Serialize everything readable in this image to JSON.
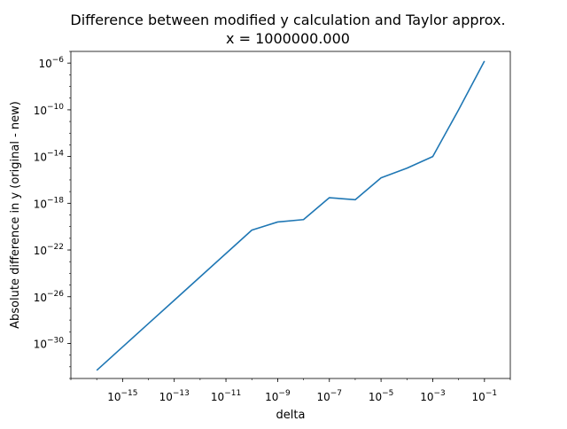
{
  "chart_data": {
    "type": "line",
    "title_line1": "Difference between modified y calculation and Taylor approx.",
    "title_line2": "x = 1000000.000",
    "xlabel": "delta",
    "ylabel": "Absolute difference in y (original - new)",
    "x_scale": "log",
    "y_scale": "log",
    "xlim": [
      1e-17,
      1.0
    ],
    "ylim": [
      1e-33,
      1e-05
    ],
    "grid": false,
    "x_ticks": [
      {
        "base": "10",
        "exp": "−15",
        "value": 1e-15
      },
      {
        "base": "10",
        "exp": "−13",
        "value": 1e-13
      },
      {
        "base": "10",
        "exp": "−11",
        "value": 1e-11
      },
      {
        "base": "10",
        "exp": "−9",
        "value": 1e-09
      },
      {
        "base": "10",
        "exp": "−7",
        "value": 1e-07
      },
      {
        "base": "10",
        "exp": "−5",
        "value": 1e-05
      },
      {
        "base": "10",
        "exp": "−3",
        "value": 0.001
      },
      {
        "base": "10",
        "exp": "−1",
        "value": 0.1
      }
    ],
    "y_ticks": [
      {
        "base": "10",
        "exp": "−30",
        "value": 1e-30
      },
      {
        "base": "10",
        "exp": "−26",
        "value": 1e-26
      },
      {
        "base": "10",
        "exp": "−22",
        "value": 1e-22
      },
      {
        "base": "10",
        "exp": "−18",
        "value": 1e-18
      },
      {
        "base": "10",
        "exp": "−14",
        "value": 1e-14
      },
      {
        "base": "10",
        "exp": "−10",
        "value": 1e-10
      },
      {
        "base": "10",
        "exp": "−6",
        "value": 1e-06
      }
    ],
    "series": [
      {
        "color": "#1f77b4",
        "x": [
          1e-16,
          1e-15,
          1e-14,
          1e-13,
          1e-12,
          1e-11,
          1e-10,
          1e-09,
          1e-08,
          1e-07,
          1e-06,
          1e-05,
          0.0001,
          0.001,
          0.01,
          0.1
        ],
        "y": [
          5e-33,
          5e-31,
          5e-29,
          5e-27,
          5e-25,
          5e-23,
          5e-21,
          2.5e-20,
          4e-20,
          3e-18,
          2e-18,
          1.5e-16,
          1e-15,
          1e-14,
          1e-10,
          1.5e-06
        ]
      }
    ]
  }
}
